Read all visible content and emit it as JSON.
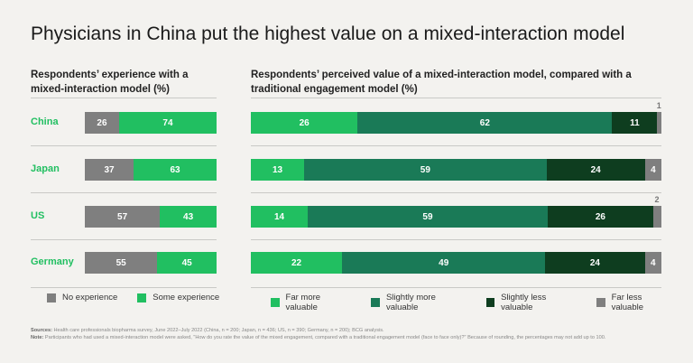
{
  "title": "Physicians in China put the highest value on a mixed-interaction model",
  "colors": {
    "no_experience": "#7f7f7f",
    "some_experience": "#21bf61",
    "far_more": "#21bf61",
    "slightly_more": "#1a7a57",
    "slightly_less": "#0e3d1f",
    "far_less": "#7f7f7f"
  },
  "chart_data": [
    {
      "type": "bar",
      "orientation": "horizontal",
      "stacked": true,
      "title": "Respondents’ experience with a mixed-interaction model (%)",
      "categories": [
        "China",
        "Japan",
        "US",
        "Germany"
      ],
      "series": [
        {
          "name": "No experience",
          "values": [
            26,
            37,
            57,
            55
          ]
        },
        {
          "name": "Some experience",
          "values": [
            74,
            63,
            43,
            45
          ]
        }
      ],
      "legend": "bottom"
    },
    {
      "type": "bar",
      "orientation": "horizontal",
      "stacked": true,
      "title": "Respondents’ perceived value of a mixed-interaction model, compared with a traditional engagement model (%)",
      "categories": [
        "China",
        "Japan",
        "US",
        "Germany"
      ],
      "series": [
        {
          "name": "Far more valuable",
          "values": [
            26,
            13,
            14,
            22
          ]
        },
        {
          "name": "Slightly more valuable",
          "values": [
            62,
            59,
            59,
            49
          ]
        },
        {
          "name": "Slightly less valuable",
          "values": [
            11,
            24,
            26,
            24
          ]
        },
        {
          "name": "Far less valuable",
          "values": [
            1,
            4,
            2,
            4
          ]
        }
      ],
      "legend": "bottom"
    }
  ],
  "footnotes": {
    "sources_label": "Sources:",
    "sources": "Health care professionals biopharma survey, June 2022–July 2022 (China, n = 200; Japan, n = 436; US, n = 390; Germany, n = 200); BCG analysis.",
    "note_label": "Note:",
    "note": "Participants who had used a mixed-interaction model were asked, \"How do you rate the value of the mixed engagement, compared with a traditional engagement model (face to face only)?\" Because of rounding, the percentages may not add up to 100."
  }
}
